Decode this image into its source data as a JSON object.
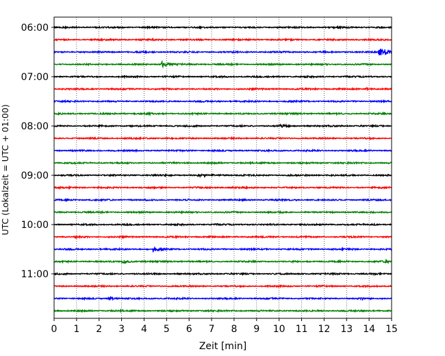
{
  "chart_data": {
    "type": "line",
    "title": "",
    "xlabel": "Zeit  [min]",
    "ylabel": "UTC (Lokalzeit = UTC + 01:00)",
    "xlim": [
      0,
      15
    ],
    "x_ticks": [
      "0",
      "1",
      "2",
      "3",
      "4",
      "5",
      "6",
      "7",
      "8",
      "9",
      "10",
      "11",
      "12",
      "13",
      "14",
      "15"
    ],
    "y_tick_labels": [
      "06:00",
      "07:00",
      "08:00",
      "09:00",
      "10:00",
      "11:00"
    ],
    "y_tick_rows": [
      0,
      4,
      8,
      12,
      16,
      20
    ],
    "vertical_grid": true,
    "trace_interval_min": 15,
    "row_colors": [
      "#000000",
      "#ff0000",
      "#0000ff",
      "#008000"
    ],
    "traces": [
      {
        "start": "06:00",
        "events": [
          {
            "t": 12.6,
            "amp": 0.25
          }
        ]
      },
      {
        "start": "06:15",
        "events": []
      },
      {
        "start": "06:30",
        "events": [
          {
            "t": 14.45,
            "amp": 1.3
          },
          {
            "t": 14.7,
            "amp": 0.6
          }
        ]
      },
      {
        "start": "06:45",
        "events": [
          {
            "t": 4.8,
            "amp": 0.9
          }
        ]
      },
      {
        "start": "07:00",
        "events": []
      },
      {
        "start": "07:15",
        "events": [
          {
            "t": 13.9,
            "amp": 0.25
          }
        ]
      },
      {
        "start": "07:30",
        "events": []
      },
      {
        "start": "07:45",
        "events": [
          {
            "t": 4.1,
            "amp": 0.2
          }
        ]
      },
      {
        "start": "08:00",
        "events": [
          {
            "t": 10.05,
            "amp": 0.45
          }
        ]
      },
      {
        "start": "08:15",
        "events": []
      },
      {
        "start": "08:30",
        "events": []
      },
      {
        "start": "08:45",
        "events": []
      },
      {
        "start": "09:00",
        "events": [
          {
            "t": 6.4,
            "amp": 0.35
          },
          {
            "t": 7.1,
            "amp": 0.2
          }
        ]
      },
      {
        "start": "09:15",
        "events": []
      },
      {
        "start": "09:30",
        "events": [
          {
            "t": 0.55,
            "amp": 0.3
          }
        ]
      },
      {
        "start": "09:45",
        "events": [
          {
            "t": 10.0,
            "amp": 0.15
          }
        ]
      },
      {
        "start": "10:00",
        "events": [
          {
            "t": 14.2,
            "amp": 0.15
          }
        ]
      },
      {
        "start": "10:15",
        "events": [
          {
            "t": 0.95,
            "amp": 0.3
          }
        ]
      },
      {
        "start": "10:30",
        "events": [
          {
            "t": 4.4,
            "amp": 0.7
          }
        ]
      },
      {
        "start": "10:45",
        "events": [
          {
            "t": 3.05,
            "amp": 0.7
          },
          {
            "t": 14.75,
            "amp": 0.5
          }
        ]
      },
      {
        "start": "11:00",
        "events": []
      },
      {
        "start": "11:15",
        "events": []
      },
      {
        "start": "11:30",
        "events": [
          {
            "t": 2.4,
            "amp": 0.45
          },
          {
            "t": 13.7,
            "amp": 0.25
          }
        ]
      },
      {
        "start": "11:45",
        "events": []
      }
    ]
  }
}
